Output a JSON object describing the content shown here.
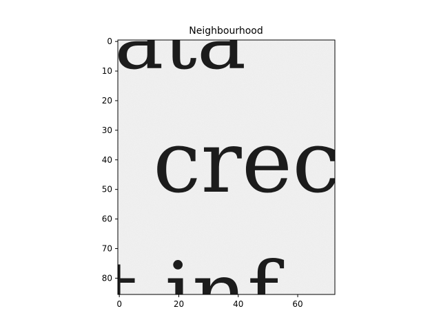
{
  "chart_data": {
    "type": "heatmap",
    "title": "Neighbourhood",
    "xlabel": "",
    "ylabel": "",
    "xlim": [
      -0.5,
      72.5
    ],
    "ylim": [
      85.5,
      -0.5
    ],
    "x_ticks": [
      0,
      20,
      40,
      60
    ],
    "y_ticks": [
      0,
      10,
      20,
      30,
      40,
      50,
      60,
      70,
      80
    ],
    "grid": false,
    "colormap": "gray",
    "image_content": "grayscale crop of a printed page showing serif text fragments",
    "visible_text_fragments": [
      "ata",
      "crec",
      "t inf"
    ],
    "colors": {
      "background": "#f2f2f2",
      "ink": "#1c1c1c",
      "frame": "#000000"
    }
  }
}
